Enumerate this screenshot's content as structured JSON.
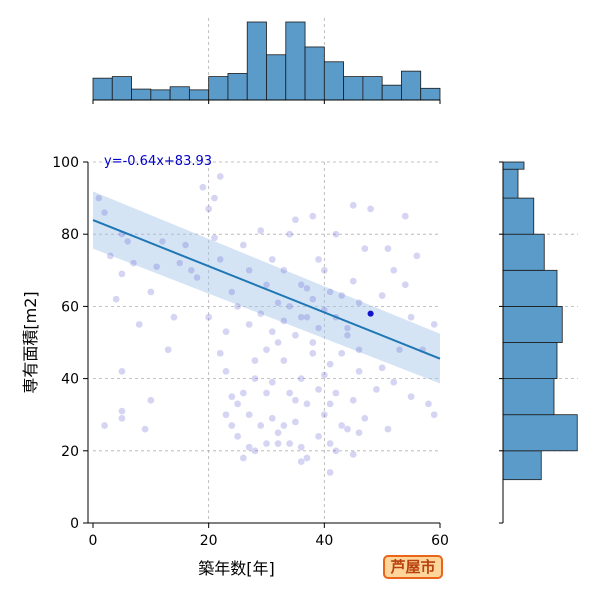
{
  "chart_data": {
    "type": "scatter",
    "xlabel": "築年数[年]",
    "ylabel": "専有面積[m2]",
    "xlim": [
      -1,
      60
    ],
    "ylim": [
      0,
      100
    ],
    "xticks": [
      "0",
      "20",
      "40",
      "60"
    ],
    "yticks": [
      "0",
      "20",
      "40",
      "60",
      "80",
      "100"
    ],
    "grid": true,
    "regression": {
      "label": "y=-0.64x+83.93",
      "slope": -0.64,
      "intercept": 83.93
    },
    "points": [
      [
        1,
        90
      ],
      [
        2,
        86
      ],
      [
        3,
        74
      ],
      [
        4,
        62
      ],
      [
        5,
        80
      ],
      [
        5,
        69
      ],
      [
        6,
        78
      ],
      [
        7,
        72
      ],
      [
        8,
        55
      ],
      [
        5,
        42
      ],
      [
        5,
        31
      ],
      [
        5,
        29
      ],
      [
        2,
        27
      ],
      [
        9,
        26
      ],
      [
        10,
        34
      ],
      [
        10,
        64
      ],
      [
        11,
        71
      ],
      [
        12,
        78
      ],
      [
        13,
        48
      ],
      [
        14,
        57
      ],
      [
        15,
        72
      ],
      [
        16,
        77
      ],
      [
        17,
        70
      ],
      [
        18,
        68
      ],
      [
        19,
        93
      ],
      [
        20,
        57
      ],
      [
        20,
        87
      ],
      [
        21,
        90
      ],
      [
        21,
        79
      ],
      [
        22,
        73
      ],
      [
        22,
        96
      ],
      [
        22,
        47
      ],
      [
        23,
        42
      ],
      [
        23,
        30
      ],
      [
        24,
        27
      ],
      [
        24,
        35
      ],
      [
        25,
        60
      ],
      [
        25,
        24
      ],
      [
        26,
        36
      ],
      [
        26,
        77
      ],
      [
        27,
        55
      ],
      [
        27,
        30
      ],
      [
        28,
        20
      ],
      [
        28,
        40
      ],
      [
        29,
        81
      ],
      [
        29,
        58
      ],
      [
        30,
        48
      ],
      [
        30,
        22
      ],
      [
        30,
        66
      ],
      [
        31,
        29
      ],
      [
        31,
        39
      ],
      [
        31,
        73
      ],
      [
        32,
        50
      ],
      [
        32,
        61
      ],
      [
        32,
        25
      ],
      [
        33,
        56
      ],
      [
        33,
        70
      ],
      [
        33,
        45
      ],
      [
        34,
        36
      ],
      [
        34,
        22
      ],
      [
        34,
        60
      ],
      [
        35,
        52
      ],
      [
        35,
        84
      ],
      [
        35,
        28
      ],
      [
        36,
        40
      ],
      [
        36,
        66
      ],
      [
        36,
        21
      ],
      [
        37,
        57
      ],
      [
        37,
        33
      ],
      [
        37,
        18
      ],
      [
        38,
        62
      ],
      [
        38,
        85
      ],
      [
        38,
        47
      ],
      [
        39,
        37
      ],
      [
        39,
        54
      ],
      [
        39,
        24
      ],
      [
        40,
        59
      ],
      [
        40,
        70
      ],
      [
        40,
        30
      ],
      [
        41,
        44
      ],
      [
        41,
        64
      ],
      [
        41,
        22
      ],
      [
        42,
        57
      ],
      [
        42,
        36
      ],
      [
        42,
        20
      ],
      [
        43,
        63
      ],
      [
        43,
        47
      ],
      [
        44,
        26
      ],
      [
        44,
        54
      ],
      [
        45,
        67
      ],
      [
        45,
        88
      ],
      [
        45,
        34
      ],
      [
        46,
        61
      ],
      [
        46,
        42
      ],
      [
        47,
        76
      ],
      [
        47,
        29
      ],
      [
        48,
        58
      ],
      [
        49,
        37
      ],
      [
        50,
        43
      ],
      [
        50,
        63
      ],
      [
        51,
        76
      ],
      [
        51,
        26
      ],
      [
        52,
        70
      ],
      [
        52,
        39
      ],
      [
        53,
        48
      ],
      [
        54,
        66
      ],
      [
        54,
        85
      ],
      [
        55,
        57
      ],
      [
        55,
        35
      ],
      [
        56,
        74
      ],
      [
        57,
        48
      ],
      [
        58,
        33
      ],
      [
        59,
        30
      ],
      [
        59,
        55
      ],
      [
        48,
        87
      ],
      [
        44,
        52
      ],
      [
        46,
        48
      ],
      [
        36,
        57
      ],
      [
        33,
        27
      ],
      [
        28,
        45
      ],
      [
        26,
        18
      ],
      [
        39,
        73
      ],
      [
        42,
        80
      ],
      [
        30,
        36
      ],
      [
        37,
        65
      ],
      [
        40,
        41
      ],
      [
        35,
        34
      ],
      [
        31,
        53
      ],
      [
        29,
        27
      ],
      [
        24,
        64
      ],
      [
        27,
        70
      ],
      [
        23,
        53
      ],
      [
        34,
        80
      ],
      [
        38,
        50
      ],
      [
        41,
        33
      ],
      [
        43,
        27
      ],
      [
        45,
        19
      ],
      [
        46,
        25
      ],
      [
        41,
        14
      ],
      [
        36,
        17
      ],
      [
        32,
        22
      ],
      [
        27,
        21
      ],
      [
        25,
        33
      ]
    ],
    "hist_x": [
      0.28,
      0.3,
      0.14,
      0.13,
      0.17,
      0.13,
      0.3,
      0.34,
      1.0,
      0.58,
      1.0,
      0.68,
      0.49,
      0.3,
      0.3,
      0.19,
      0.37,
      0.15
    ],
    "hist_y": [
      {
        "lo": 0,
        "hi": 8,
        "v": 0
      },
      {
        "lo": 8,
        "hi": 20,
        "v": 0
      },
      {
        "lo": 12,
        "hi": 20,
        "v": 0.51
      },
      {
        "lo": 20,
        "hi": 30,
        "v": 0.99
      },
      {
        "lo": 30,
        "hi": 40,
        "v": 0.68
      },
      {
        "lo": 40,
        "hi": 50,
        "v": 0.72
      },
      {
        "lo": 50,
        "hi": 60,
        "v": 0.79
      },
      {
        "lo": 60,
        "hi": 70,
        "v": 0.72
      },
      {
        "lo": 70,
        "hi": 80,
        "v": 0.55
      },
      {
        "lo": 80,
        "hi": 90,
        "v": 0.41
      },
      {
        "lo": 90,
        "hi": 98,
        "v": 0.2
      },
      {
        "lo": 98,
        "hi": 100,
        "v": 0.28
      }
    ],
    "colors": {
      "points": "#6a6ad6",
      "line": "#1f77b4",
      "band": "#9fc3e6",
      "bars": "#5b9bc9",
      "grid": "#b0b0b0",
      "eq": "#0000cc"
    }
  },
  "badge": {
    "label": "芦屋市"
  }
}
